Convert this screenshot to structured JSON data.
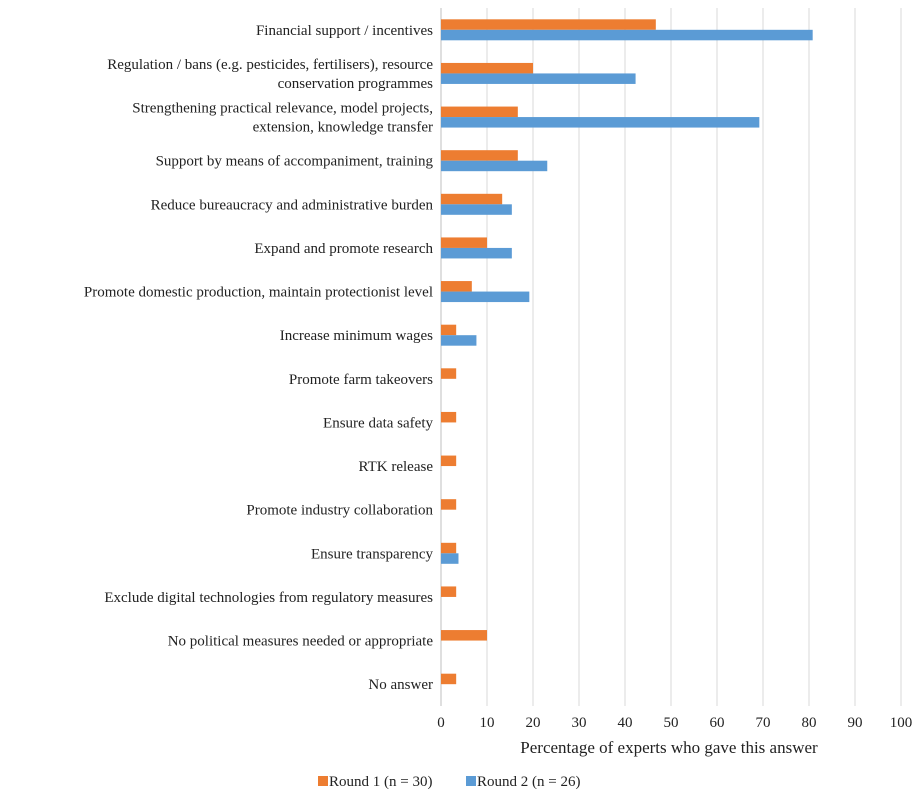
{
  "chart_data": {
    "type": "bar",
    "orientation": "horizontal",
    "categories": [
      "Financial support / incentives",
      [
        "Regulation / bans (e.g. pesticides, fertilisers), resource",
        "conservation programmes"
      ],
      [
        "Strengthening practical relevance, model projects,",
        "extension, knowledge transfer"
      ],
      "Support by means of accompaniment, training",
      "Reduce bureaucracy and administrative burden",
      "Expand and promote research",
      "Promote domestic production, maintain protectionist level",
      "Increase minimum wages",
      "Promote farm takeovers",
      "Ensure data safety",
      "RTK release",
      "Promote industry collaboration",
      "Ensure transparency",
      "Exclude digital technologies from regulatory measures",
      "No political measures needed or appropriate",
      "No answer"
    ],
    "series": [
      {
        "name": "Round 1 (n = 30)",
        "color": "#ED7D31",
        "values": [
          46.7,
          20.0,
          16.7,
          16.7,
          13.3,
          10.0,
          6.7,
          3.3,
          3.3,
          3.3,
          3.3,
          3.3,
          3.3,
          3.3,
          10.0,
          3.3
        ]
      },
      {
        "name": "Round 2 (n = 26)",
        "color": "#5B9BD5",
        "values": [
          80.8,
          42.3,
          69.2,
          23.1,
          15.4,
          15.4,
          19.2,
          7.7,
          0,
          0,
          0,
          0,
          3.8,
          0,
          0,
          0
        ]
      }
    ],
    "xlabel": "Percentage of experts who gave this answer",
    "xlim": [
      0,
      100
    ],
    "xticks": [
      "0",
      "10",
      "20",
      "30",
      "40",
      "50",
      "60",
      "70",
      "80",
      "90",
      "100"
    ],
    "grid": "vertical",
    "legend": "bottom"
  }
}
